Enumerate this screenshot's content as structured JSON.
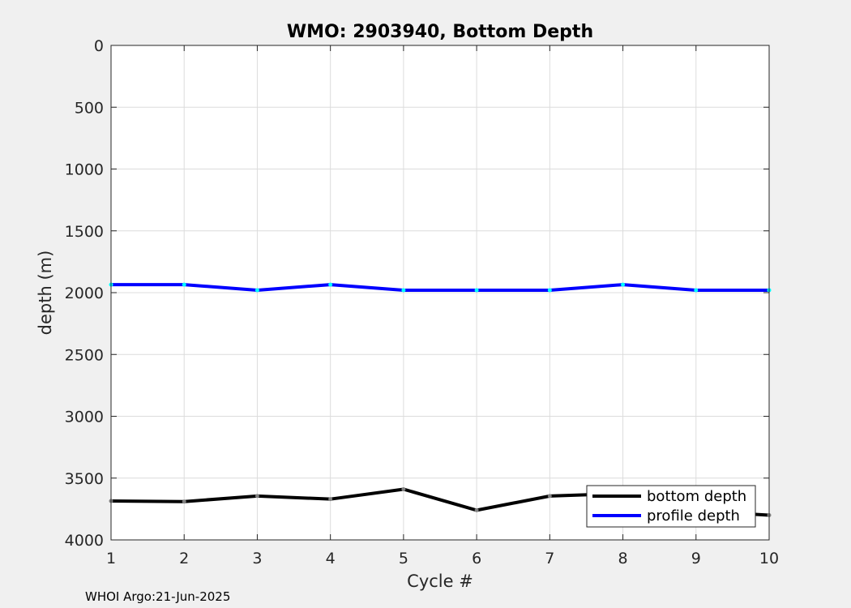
{
  "figure": {
    "footer": "WHOI Argo:21-Jun-2025"
  },
  "chart_data": {
    "type": "line",
    "title": "WMO: 2903940, Bottom Depth",
    "xlabel": "Cycle #",
    "ylabel": "depth (m)",
    "xlim": [
      1,
      10
    ],
    "ylim": [
      0,
      4000
    ],
    "y_reversed": true,
    "grid": true,
    "legend_position": "bottom-right",
    "x": [
      1,
      2,
      3,
      4,
      5,
      6,
      7,
      8,
      9,
      10
    ],
    "xticks": [
      1,
      2,
      3,
      4,
      5,
      6,
      7,
      8,
      9,
      10
    ],
    "yticks": [
      0,
      500,
      1000,
      1500,
      2000,
      2500,
      3000,
      3500,
      4000
    ],
    "series": [
      {
        "name": "bottom depth",
        "color": "#000000",
        "marker_color": "#808080",
        "values": [
          3685,
          3690,
          3645,
          3670,
          3590,
          3760,
          3645,
          3625,
          3765,
          3800
        ]
      },
      {
        "name": "profile depth",
        "color": "#0000ff",
        "marker_color": "#00ffff",
        "values": [
          1935,
          1935,
          1980,
          1935,
          1980,
          1980,
          1980,
          1935,
          1980,
          1980
        ]
      }
    ]
  }
}
